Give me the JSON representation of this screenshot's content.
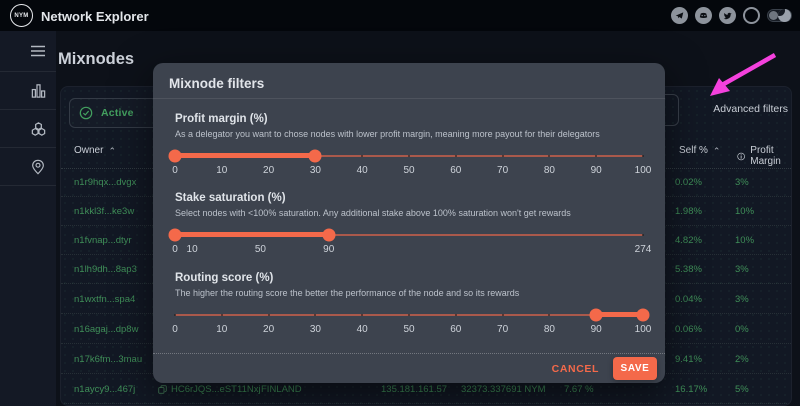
{
  "topbar": {
    "logo_text": "NYM",
    "app_title": "Network Explorer",
    "icons": [
      "telegram",
      "discord",
      "twitter",
      "github"
    ],
    "dark_mode_toggle_on": true
  },
  "sidebar": {
    "items": [
      {
        "icon": "menu"
      },
      {
        "icon": "bar-chart"
      },
      {
        "icon": "nodes"
      },
      {
        "icon": "location-pin"
      }
    ]
  },
  "page": {
    "title": "Mixnodes"
  },
  "filters": {
    "active_label": "Active",
    "advanced_label": "Advanced filters"
  },
  "table": {
    "headers": {
      "owner": "Owner",
      "self": "Self %",
      "profit": "Profit Margin"
    },
    "rows": [
      {
        "owner": "n1r9hqx...dvgx",
        "self": "0.02%",
        "profit": "3%"
      },
      {
        "owner": "n1kkl3f...ke3w",
        "self": "1.98%",
        "profit": "10%"
      },
      {
        "owner": "n1fvnap...dtyr",
        "self": "4.82%",
        "profit": "10%"
      },
      {
        "owner": "n1lh9dh...8ap3",
        "self": "5.38%",
        "profit": "3%"
      },
      {
        "owner": "n1wxtfn...spa4",
        "self": "0.04%",
        "profit": "3%"
      },
      {
        "owner": "n16agaj...dp8w",
        "self": "0.06%",
        "profit": "0%"
      },
      {
        "owner": "n17k6fm...3mau",
        "self": "9.41%",
        "profit": "2%"
      },
      {
        "owner": "n1aycy9...467j",
        "identity": "HC6rJQS...eST11Nxj",
        "location": "FINLAND",
        "host": "135.181.161.57",
        "stake": "32373.337691 NYM",
        "sat": "7.67 %",
        "self": "16.17%",
        "profit": "5%"
      }
    ]
  },
  "modal": {
    "title": "Mixnode filters",
    "sliders": [
      {
        "label": "Profit margin (%)",
        "description": "As a delegator you want to chose nodes with lower profit margin, meaning more payout for their delegators",
        "min": 0,
        "max": 100,
        "ticks": [
          0,
          10,
          20,
          30,
          40,
          50,
          60,
          70,
          80,
          90,
          100
        ],
        "range": [
          0,
          30
        ]
      },
      {
        "label": "Stake saturation (%)",
        "description": "Select nodes with <100% saturation. Any additional stake above 100% saturation won't get rewards",
        "min": 0,
        "max": 274,
        "ticks": [
          0,
          10,
          50,
          90,
          274
        ],
        "range": [
          0,
          90
        ]
      },
      {
        "label": "Routing score (%)",
        "description": "The higher the routing score the better the performance of the node and so its rewards",
        "min": 0,
        "max": 100,
        "ticks": [
          0,
          10,
          20,
          30,
          40,
          50,
          60,
          70,
          80,
          90,
          100
        ],
        "range": [
          90,
          100
        ]
      }
    ],
    "cancel_label": "CANCEL",
    "save_label": "SAVE"
  },
  "annotation": {
    "type": "arrow",
    "target": "Advanced filters",
    "color": "#f441dd"
  },
  "colors": {
    "accent_orange": "#f4694a",
    "table_green": "#3f8e58",
    "active_green": "#43a05f",
    "modal_bg": "#3d434e",
    "pink_arrow": "#f441dd"
  }
}
